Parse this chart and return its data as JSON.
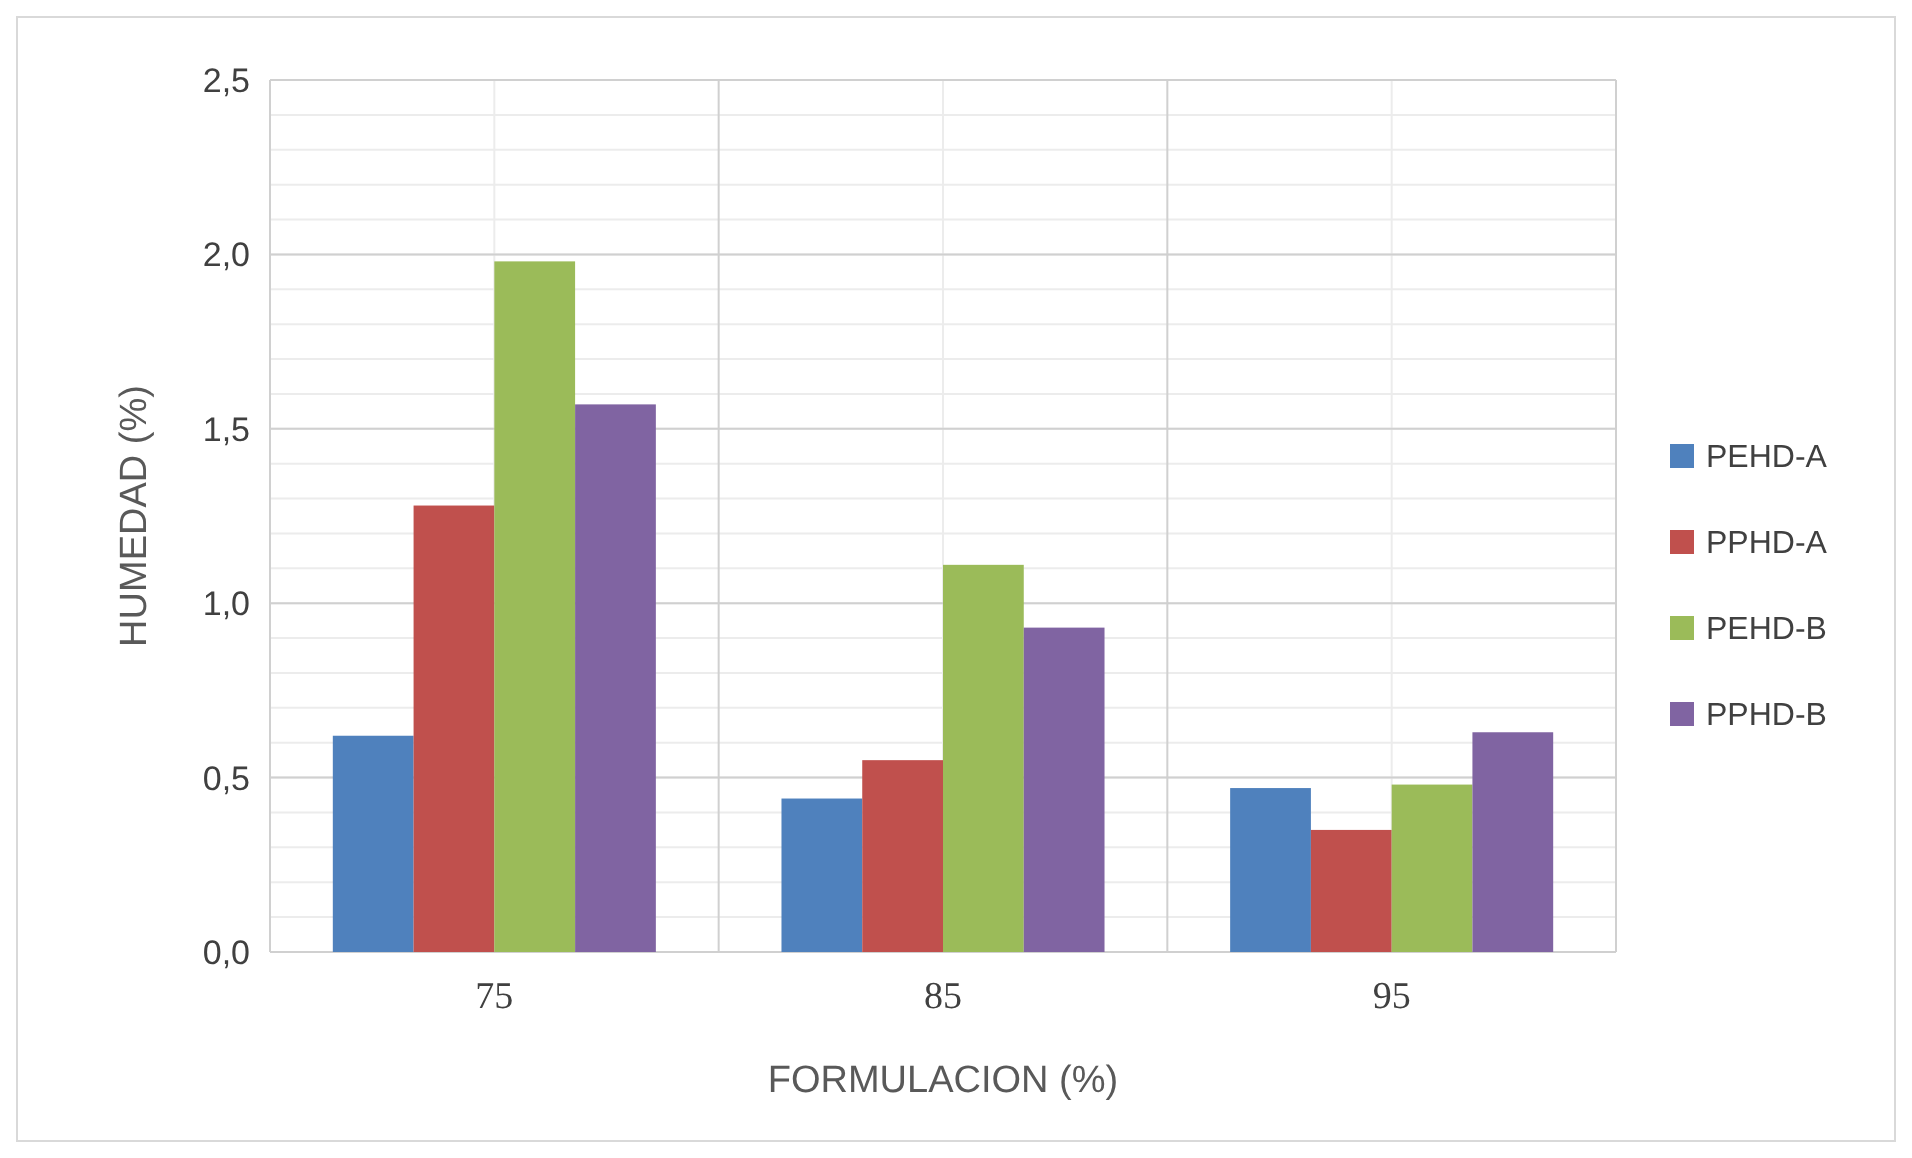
{
  "chart_data": {
    "type": "bar",
    "xlabel": "FORMULACION (%)",
    "ylabel": "HUMEDAD (%)",
    "categories": [
      "75",
      "85",
      "95"
    ],
    "series": [
      {
        "name": "PEHD-A",
        "color": "#4f81bd",
        "values": [
          0.62,
          0.44,
          0.47
        ]
      },
      {
        "name": "PPHD-A",
        "color": "#c0504d",
        "values": [
          1.28,
          0.55,
          0.35
        ]
      },
      {
        "name": "PEHD-B",
        "color": "#9bbb59",
        "values": [
          1.98,
          1.11,
          0.48
        ]
      },
      {
        "name": "PPHD-B",
        "color": "#8064a2",
        "values": [
          1.57,
          0.93,
          0.63
        ]
      }
    ],
    "ylim": [
      0,
      2.5
    ],
    "yticks": [
      {
        "value": 0,
        "label": "0,0"
      },
      {
        "value": 0.5,
        "label": "0,5"
      },
      {
        "value": 1,
        "label": "1,0"
      },
      {
        "value": 1.5,
        "label": "1,5"
      },
      {
        "value": 2,
        "label": "2,0"
      },
      {
        "value": 2.5,
        "label": "2,5"
      }
    ],
    "grid": true,
    "legend": "right"
  }
}
